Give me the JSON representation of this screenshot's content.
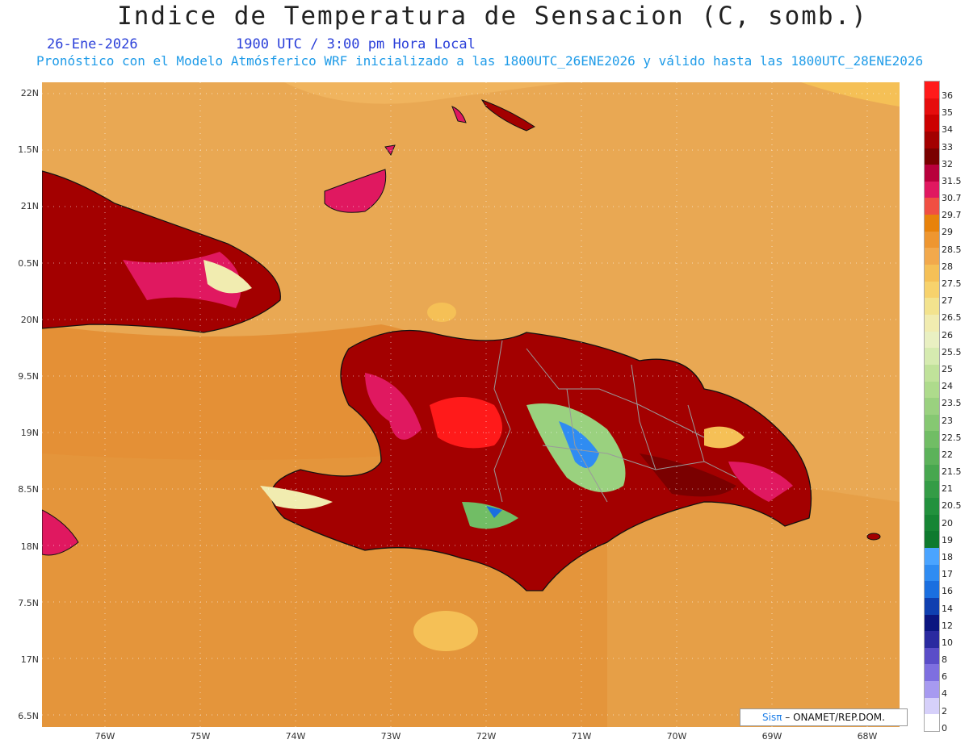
{
  "title": "Indice de Temperatura de Sensacion (C, somb.)",
  "date": "26-Ene-2026",
  "time": "1900 UTC / 3:00 pm Hora Local",
  "validity": "Pronóstico con el Modelo Atmósferico WRF inicializado a las 1800UTC_26ENE2026 y válido hasta las  1800UTC_28ENE2026",
  "credit": {
    "brand": "Sisπ",
    "org": "– ONAMET/REP.DOM."
  },
  "lat_labels": [
    "22N",
    "1.5N",
    "21N",
    "0.5N",
    "20N",
    "9.5N",
    "19N",
    "8.5N",
    "18N",
    "7.5N",
    "17N",
    "6.5N"
  ],
  "lon_labels": [
    "76W",
    "75W",
    "74W",
    "73W",
    "72W",
    "71W",
    "70W",
    "69W",
    "68W"
  ],
  "colorbar": {
    "labels": [
      "36",
      "35",
      "34",
      "33",
      "32",
      "31.5",
      "30.7",
      "29.7",
      "29",
      "28.5",
      "28",
      "27.5",
      "27",
      "26.5",
      "26",
      "25.5",
      "25",
      "24",
      "23.5",
      "23",
      "22.5",
      "22",
      "21.5",
      "21",
      "20.5",
      "20",
      "19",
      "18",
      "17",
      "16",
      "14",
      "12",
      "10",
      "8",
      "6",
      "4",
      "2",
      "0"
    ],
    "colors": [
      "#ff1a1a",
      "#e60d0d",
      "#cc0000",
      "#a30000",
      "#7a0000",
      "#b8003c",
      "#e01860",
      "#f04f42",
      "#e8820a",
      "#ee9630",
      "#f2a94c",
      "#f5c056",
      "#f7d26c",
      "#f3e38e",
      "#f1ecb0",
      "#e9f0c2",
      "#d6ebb0",
      "#c0e29a",
      "#aedb8c",
      "#9ad17f",
      "#86c872",
      "#71bd65",
      "#5cb25a",
      "#47a74f",
      "#349c46",
      "#22913d",
      "#168534",
      "#0e7a2e",
      "#4aa4ff",
      "#2f8cf2",
      "#1a6fe0",
      "#0f3fb0",
      "#0b1580",
      "#2a2aa0",
      "#5a4dc8",
      "#7e6fe0",
      "#a79af0",
      "#d6d0fa",
      "#ffffff"
    ]
  }
}
